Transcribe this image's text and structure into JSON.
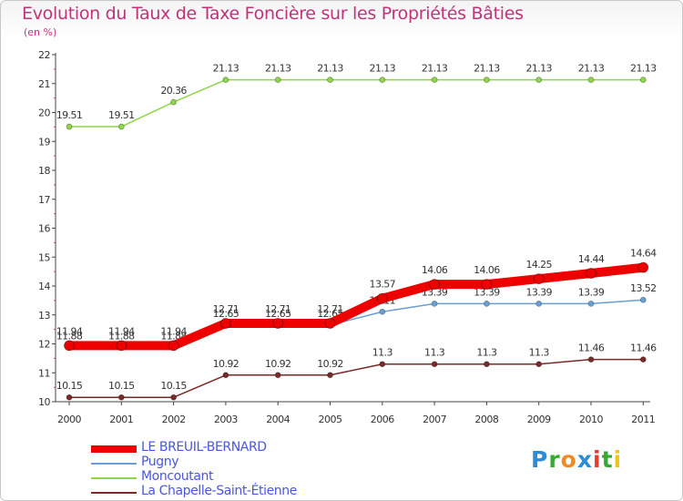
{
  "title": "Evolution du Taux de Taxe Foncière sur les Propriétés Bâties",
  "subtitle": "(en %)",
  "brand": {
    "text": "Proxiti",
    "colors": [
      "#2e8bd6",
      "#39a935",
      "#f08a24",
      "#2e8bd6",
      "#e63b2e",
      "#39a935",
      "#f0c419"
    ]
  },
  "chart_data": {
    "type": "line",
    "title": "Evolution du Taux de Taxe Foncière sur les Propriétés Bâties",
    "ylabel": "(en %)",
    "xlabel": "",
    "ylim": [
      10,
      22
    ],
    "y_ticks": [
      "10",
      "11",
      "12",
      "13",
      "14",
      "15",
      "16",
      "17",
      "18",
      "19",
      "20",
      "21",
      "22"
    ],
    "categories": [
      "2000",
      "2001",
      "2002",
      "2003",
      "2004",
      "2005",
      "2006",
      "2007",
      "2008",
      "2009",
      "2010",
      "2011"
    ],
    "series": [
      {
        "name": "Moncoutant",
        "color": "#8ed64a",
        "values": [
          19.51,
          19.51,
          20.36,
          21.13,
          21.13,
          21.13,
          21.13,
          21.13,
          21.13,
          21.13,
          21.13,
          21.13
        ],
        "labels": [
          "19.51",
          "19.51",
          "20.36",
          "21.13",
          "21.13",
          "21.13",
          "21.13",
          "21.13",
          "21.13",
          "21.13",
          "21.13",
          "21.13"
        ]
      },
      {
        "name": "La Chapelle-Saint-Étienne",
        "color": "#7a2a2a",
        "values": [
          10.15,
          10.15,
          10.15,
          10.92,
          10.92,
          10.92,
          11.3,
          11.3,
          11.3,
          11.3,
          11.46,
          11.46
        ],
        "labels": [
          "10.15",
          "10.15",
          "10.15",
          "10.92",
          "10.92",
          "10.92",
          "11.3",
          "11.3",
          "11.3",
          "11.3",
          "11.46",
          "11.46"
        ]
      },
      {
        "name": "Pugny",
        "color": "#6a9fd4",
        "values": [
          11.88,
          11.88,
          11.88,
          12.65,
          12.65,
          12.65,
          13.11,
          13.39,
          13.39,
          13.39,
          13.39,
          13.52
        ],
        "labels": [
          "11.88",
          "11.88",
          "11.88",
          "12.65",
          "12.65",
          "12.65",
          "13.11",
          "13.39",
          "13.39",
          "13.39",
          "13.39",
          "13.52"
        ]
      },
      {
        "name": "LE BREUIL-BERNARD",
        "color": "#ee0000",
        "values": [
          11.94,
          11.94,
          11.94,
          12.71,
          12.71,
          12.71,
          13.57,
          14.06,
          14.06,
          14.25,
          14.44,
          14.64
        ],
        "labels": [
          "11.94",
          "11.94",
          "11.94",
          "12.71",
          "12.71",
          "12.71",
          "13.57",
          "14.06",
          "14.06",
          "14.25",
          "14.44",
          "14.64"
        ]
      }
    ],
    "legend": [
      {
        "name": "LE BREUIL-BERNARD",
        "color": "#ee0000"
      },
      {
        "name": "Pugny",
        "color": "#6a9fd4"
      },
      {
        "name": "Moncoutant",
        "color": "#8ed64a"
      },
      {
        "name": "La Chapelle-Saint-Étienne",
        "color": "#7a2a2a"
      }
    ],
    "grid": false,
    "legend_position": "bottom-left"
  }
}
